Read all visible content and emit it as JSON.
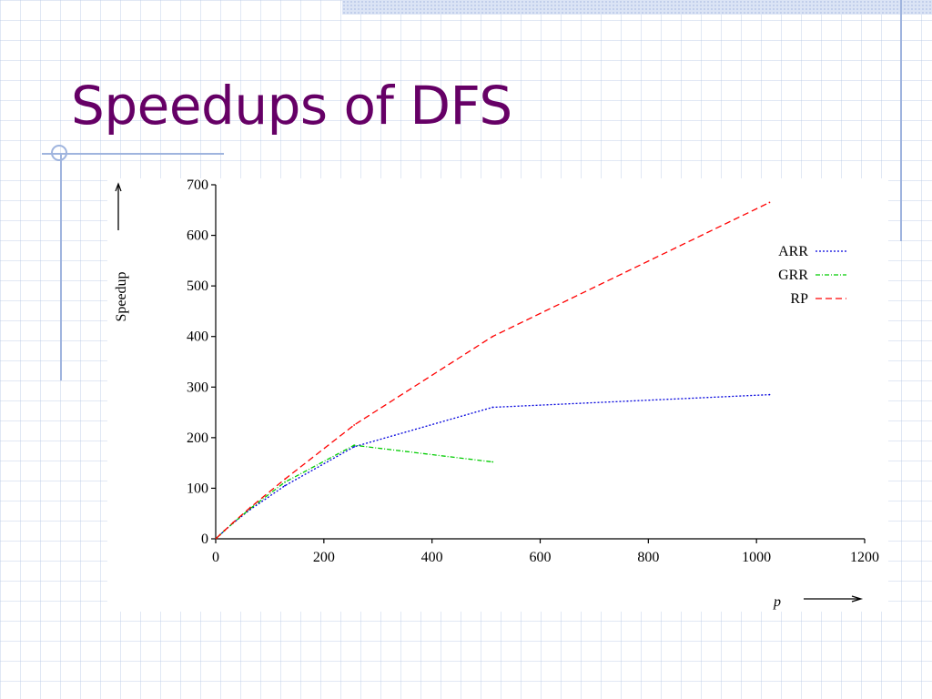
{
  "slide": {
    "title": "Speedups of DFS"
  },
  "chart_data": {
    "type": "line",
    "title": "",
    "xlabel": "p",
    "ylabel": "Speedup",
    "xlim": [
      0,
      1200
    ],
    "ylim": [
      0,
      700
    ],
    "xticks": [
      0,
      200,
      400,
      600,
      800,
      1000,
      1200
    ],
    "yticks": [
      0,
      100,
      200,
      300,
      400,
      500,
      600,
      700
    ],
    "grid": false,
    "legend_position": "top-right",
    "series": [
      {
        "name": "ARR",
        "color": "#0000dd",
        "style": "dotted",
        "x": [
          1,
          8,
          16,
          32,
          64,
          128,
          256,
          512,
          1024
        ],
        "y": [
          1,
          8,
          16,
          31,
          58,
          105,
          182,
          260,
          285
        ]
      },
      {
        "name": "GRR",
        "color": "#00cc00",
        "style": "dash-dot",
        "x": [
          1,
          8,
          16,
          32,
          64,
          128,
          256,
          512
        ],
        "y": [
          1,
          8,
          16,
          31,
          60,
          112,
          185,
          152
        ]
      },
      {
        "name": "RP",
        "color": "#ff0000",
        "style": "dashed",
        "x": [
          1,
          8,
          16,
          32,
          64,
          128,
          256,
          512,
          1024
        ],
        "y": [
          1,
          8,
          16,
          32,
          62,
          118,
          225,
          400,
          665
        ]
      }
    ]
  }
}
